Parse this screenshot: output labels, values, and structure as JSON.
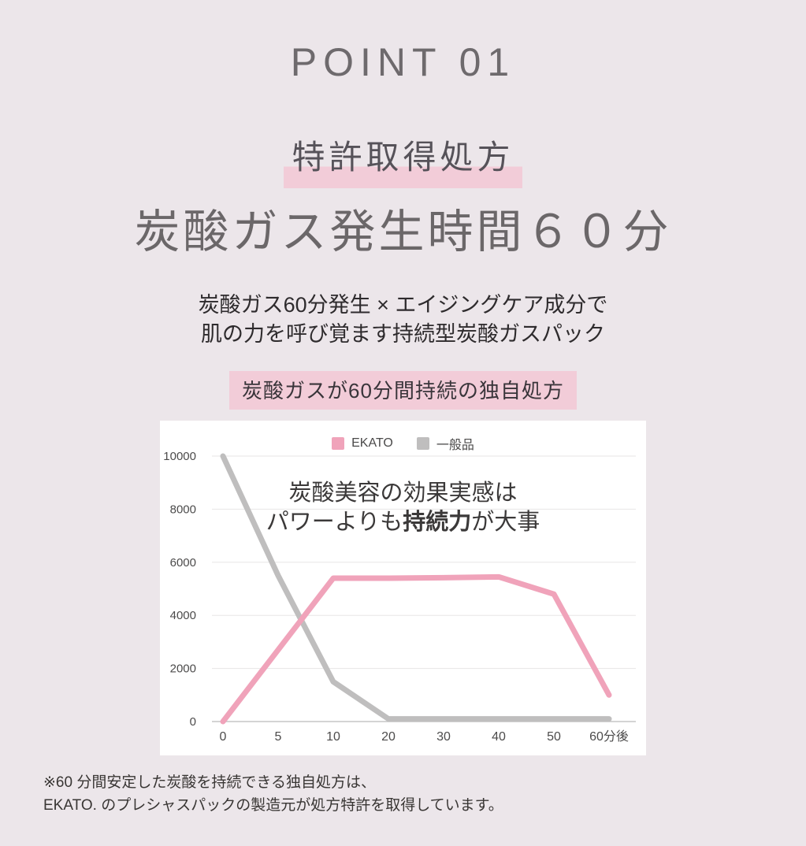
{
  "header": {
    "kicker": "POINT 01",
    "highlight": "特許取得処方",
    "title": "炭酸ガス発生時間６０分"
  },
  "description": {
    "line1": "炭酸ガス60分発生 × エイジングケア成分で",
    "line2": "肌の力を呼び覚ます持続型炭酸ガスパック"
  },
  "badge": {
    "label": "炭酸ガスが60分間持続の独自処方"
  },
  "chart_data": {
    "type": "line",
    "title": "炭酸ガスが60分間持続の独自処方",
    "categories": [
      "0",
      "5",
      "10",
      "20",
      "30",
      "40",
      "50",
      "60分後"
    ],
    "xlabel": "",
    "ylabel": "",
    "ylim": [
      0,
      10000
    ],
    "yticks": [
      0,
      2000,
      4000,
      6000,
      8000,
      10000
    ],
    "grid": true,
    "legend_position": "top",
    "legend": [
      {
        "label": "EKATO",
        "color": "#f0a3ba"
      },
      {
        "label": "一般品",
        "color": "#bfbebe"
      }
    ],
    "series": [
      {
        "name": "一般品",
        "color": "#bfbebe",
        "values": [
          10000,
          5500,
          1500,
          100,
          100,
          100,
          100,
          100
        ]
      },
      {
        "name": "EKATO",
        "color": "#f0a3ba",
        "values": [
          0,
          2700,
          5400,
          5400,
          5420,
          5450,
          4800,
          1000
        ]
      }
    ],
    "annotation": {
      "lines": [
        [
          {
            "text": "炭酸美容の効果実感は",
            "bold": false
          }
        ],
        [
          {
            "text": "パワーよりも",
            "bold": false
          },
          {
            "text": "持続力",
            "bold": true
          },
          {
            "text": "が大事",
            "bold": false
          }
        ]
      ]
    }
  },
  "footnote": {
    "line1": "※60 分間安定した炭酸を持続できる独自処方は、",
    "line2": "EKATO. のプレシャスパックの製造元が処方特許を取得しています。"
  },
  "colors": {
    "background": "#ece6ea",
    "panel": "#ffffff",
    "highlight_pink": "#f2ccd8",
    "ekato_pink": "#f0a3ba",
    "generic_gray": "#bfbebe",
    "axis_text": "#4c4b4b",
    "gridline": "#e7e6e6",
    "axis_line": "#c6c5c5"
  }
}
